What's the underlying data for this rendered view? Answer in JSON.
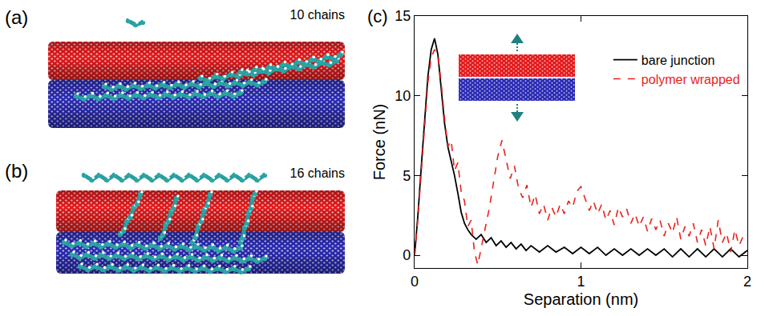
{
  "figure": {
    "panels": [
      {
        "label": "(a)",
        "caption": "10 chains"
      },
      {
        "label": "(b)",
        "caption": "16 chains"
      },
      {
        "label": "(c)"
      }
    ]
  },
  "chart_data": {
    "type": "line",
    "x_label": "Separation (nm)",
    "y_label": "Force (nN)",
    "xlim": [
      0,
      2
    ],
    "ylim": [
      -0.8,
      15
    ],
    "xticks": [
      0,
      1,
      2
    ],
    "yticks": [
      0,
      5,
      10,
      15
    ],
    "grid": false,
    "legend": "upper right",
    "series": [
      {
        "name": "bare junction",
        "color": "#000000",
        "line_style": "solid",
        "x": [
          0,
          0.02,
          0.04,
          0.06,
          0.08,
          0.1,
          0.12,
          0.14,
          0.16,
          0.18,
          0.2,
          0.22,
          0.24,
          0.26,
          0.28,
          0.3,
          0.32,
          0.34,
          0.37,
          0.4,
          0.43,
          0.46,
          0.49,
          0.52,
          0.55,
          0.58,
          0.61,
          0.64,
          0.67,
          0.7,
          0.75,
          0.8,
          0.85,
          0.9,
          0.95,
          1.0,
          1.05,
          1.1,
          1.15,
          1.2,
          1.25,
          1.3,
          1.35,
          1.4,
          1.45,
          1.5,
          1.55,
          1.6,
          1.65,
          1.7,
          1.75,
          1.8,
          1.85,
          1.9,
          1.95,
          2.0
        ],
        "values": [
          0,
          2.5,
          5.5,
          8.6,
          11.2,
          12.9,
          13.6,
          12.6,
          10.4,
          8.3,
          6.8,
          5.9,
          5.0,
          3.9,
          2.7,
          2.0,
          1.6,
          1.3,
          1.0,
          1.3,
          0.8,
          1.1,
          0.6,
          0.9,
          0.5,
          0.8,
          0.4,
          0.7,
          0.3,
          0.6,
          0.2,
          0.6,
          0.2,
          0.5,
          0.1,
          0.5,
          0.1,
          0.5,
          0.0,
          0.4,
          0.0,
          0.4,
          0.0,
          0.4,
          0.0,
          0.4,
          -0.1,
          0.4,
          -0.1,
          0.4,
          -0.1,
          0.4,
          -0.1,
          0.4,
          -0.1,
          0.3
        ]
      },
      {
        "name": "polymer wrapped",
        "color": "#e8231e",
        "line_style": "dashed",
        "x": [
          0,
          0.02,
          0.04,
          0.06,
          0.08,
          0.1,
          0.12,
          0.14,
          0.16,
          0.18,
          0.2,
          0.22,
          0.24,
          0.26,
          0.28,
          0.3,
          0.32,
          0.34,
          0.36,
          0.38,
          0.4,
          0.425,
          0.45,
          0.475,
          0.5,
          0.525,
          0.55,
          0.575,
          0.6,
          0.625,
          0.65,
          0.675,
          0.7,
          0.725,
          0.75,
          0.775,
          0.8,
          0.825,
          0.85,
          0.875,
          0.9,
          0.925,
          0.95,
          0.975,
          1,
          1.025,
          1.05,
          1.075,
          1.1,
          1.125,
          1.15,
          1.175,
          1.2,
          1.225,
          1.25,
          1.275,
          1.3,
          1.325,
          1.35,
          1.375,
          1.4,
          1.425,
          1.45,
          1.475,
          1.5,
          1.525,
          1.55,
          1.575,
          1.6,
          1.625,
          1.65,
          1.675,
          1.7,
          1.725,
          1.75,
          1.775,
          1.8,
          1.825,
          1.85,
          1.875,
          1.9,
          1.925,
          1.95,
          1.975,
          2
        ],
        "values": [
          0,
          2.3,
          5.2,
          8.2,
          10.8,
          12.4,
          12.9,
          12.6,
          10.8,
          8.6,
          6.8,
          7.2,
          5.3,
          5.8,
          4.0,
          3.4,
          1.8,
          2.2,
          0.2,
          -0.6,
          0.4,
          1.8,
          3.0,
          4.6,
          6.2,
          7.2,
          6.0,
          4.8,
          5.6,
          4.2,
          3.6,
          4.4,
          3.0,
          3.8,
          2.6,
          3.2,
          2.2,
          3.0,
          2.4,
          3.2,
          2.6,
          3.4,
          3.0,
          4.0,
          4.3,
          3.6,
          2.8,
          3.4,
          2.6,
          3.2,
          2.2,
          2.8,
          1.9,
          3.0,
          2.4,
          2.9,
          2.0,
          2.6,
          1.8,
          2.4,
          1.5,
          2.3,
          1.6,
          2.2,
          1.2,
          2.0,
          1.4,
          2.4,
          1.0,
          1.8,
          1.2,
          2.0,
          0.8,
          1.6,
          0.6,
          1.8,
          0.4,
          2.2,
          0.8,
          1.4,
          0.2,
          1.6,
          0.6,
          1.2,
          0.9
        ]
      }
    ]
  }
}
